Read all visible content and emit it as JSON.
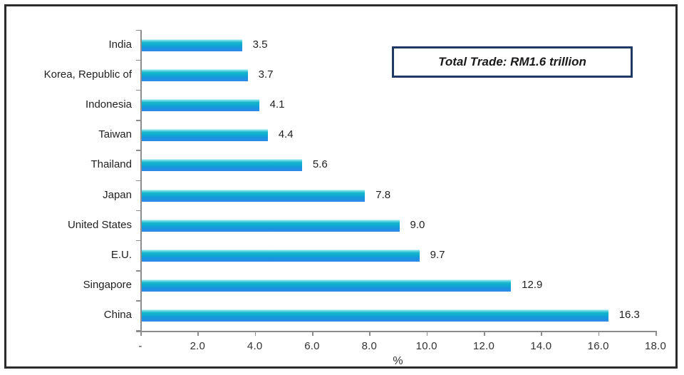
{
  "chart_data": {
    "type": "bar",
    "orientation": "horizontal",
    "categories": [
      "India",
      "Korea, Republic of",
      "Indonesia",
      "Taiwan",
      "Thailand",
      "Japan",
      "United States",
      "E.U.",
      "Singapore",
      "China"
    ],
    "values": [
      3.5,
      3.7,
      4.1,
      4.4,
      5.6,
      7.8,
      9.0,
      9.7,
      12.9,
      16.3
    ],
    "value_labels": [
      "3.5",
      "3.7",
      "4.1",
      "4.4",
      "5.6",
      "7.8",
      "9.0",
      "9.7",
      "12.9",
      "16.3"
    ],
    "xlabel": "%",
    "xlim": [
      0,
      18
    ],
    "x_ticks": [
      "-",
      "2.0",
      "4.0",
      "6.0",
      "8.0",
      "10.0",
      "12.0",
      "14.0",
      "16.0",
      "18.0"
    ],
    "annotation": "Total Trade: RM1.6 trillion",
    "legend": "none",
    "grid": "off",
    "bar_color_top": "#7fe2ea",
    "bar_color_mid": "#0fadcf",
    "bar_color_bottom": "#2a8ce9",
    "axis_color": "#8c8c8c",
    "text_color": "#1f1f1f",
    "annotation_border_color": "#1f3864",
    "frame_border_color": "#2b2b2b"
  }
}
